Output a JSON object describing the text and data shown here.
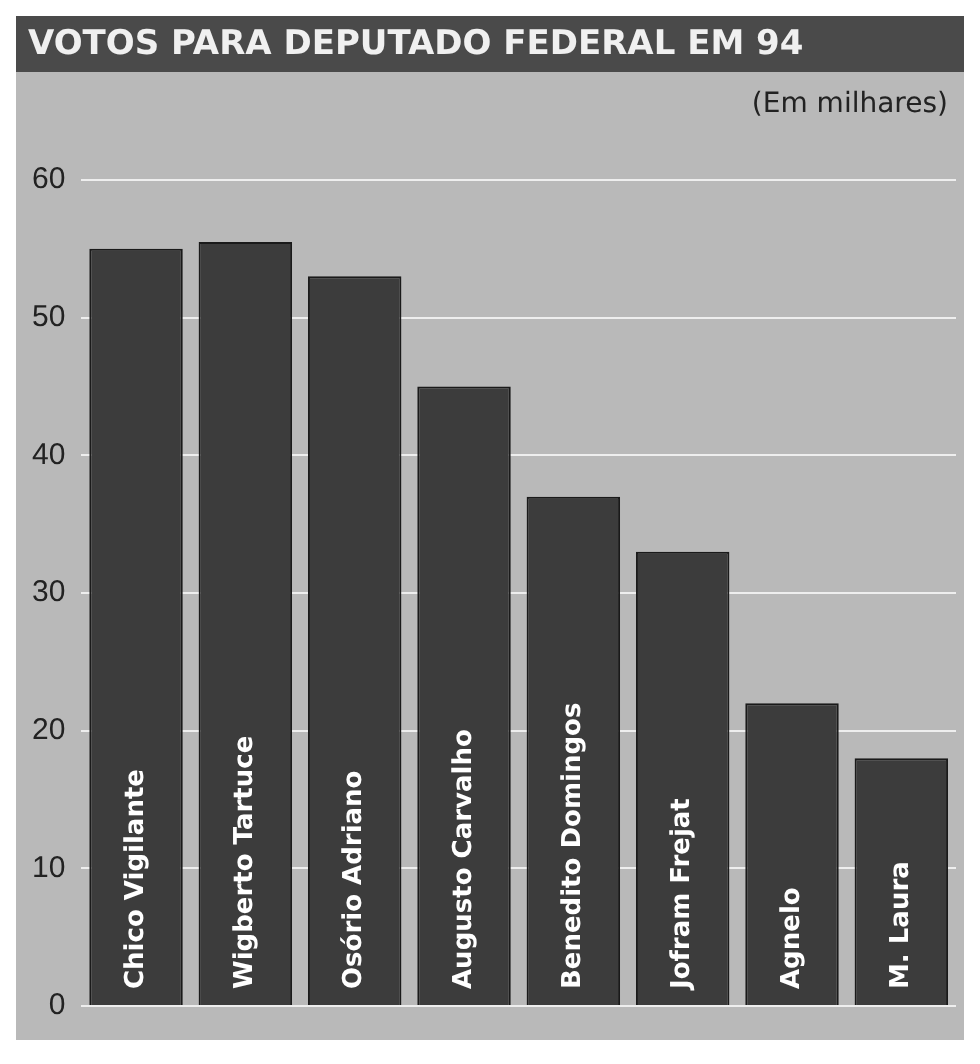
{
  "chart_data": {
    "type": "bar",
    "title": "VOTOS PARA DEPUTADO FEDERAL EM 94",
    "subtitle": "(Em milhares)",
    "categories": [
      "Chico Vigilante",
      "Wigberto Tartuce",
      "Osório Adriano",
      "Augusto Carvalho",
      "Benedito Domingos",
      "Jofram Frejat",
      "Agnelo",
      "M. Laura"
    ],
    "values": [
      55,
      55.5,
      53,
      45,
      37,
      33,
      22,
      18
    ],
    "color": "#3c3c3c",
    "ylim": [
      0,
      60
    ],
    "yticks": [
      0,
      10,
      20,
      30,
      40,
      50,
      60
    ],
    "grid": "y"
  }
}
